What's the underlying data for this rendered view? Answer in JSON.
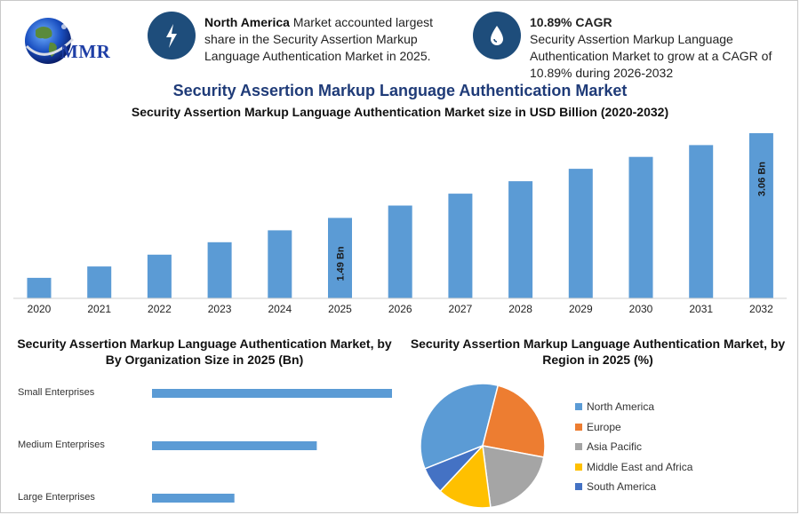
{
  "brand": {
    "logo_text": "MMR"
  },
  "info": [
    {
      "icon": "bolt-icon",
      "bold": "North America",
      "text": " Market accounted largest share in the Security Assertion Markup Language Authentication Market in 2025."
    },
    {
      "icon": "drop-icon",
      "bold": "10.89% CAGR",
      "text": "Security Assertion Markup Language Authentication Market to grow at a CAGR of 10.89% during 2026-2032"
    }
  ],
  "title": "Security Assertion Markup Language Authentication Market",
  "subtitle": "Security Assertion Markup Language Authentication Market size in USD Billion (2020-2032)",
  "org_panel": {
    "title_line1": "Security Assertion Markup Language Authentication Market, by",
    "title_line2": "By Organization Size in 2025 (Bn)"
  },
  "region_panel": {
    "title_line1": "Security Assertion Markup Language Authentication Market, by",
    "title_line2": "Region in 2025 (%)"
  },
  "colors": {
    "bar": "#5b9bd5",
    "north_america": "#5b9bd5",
    "europe": "#ed7d31",
    "asia_pacific": "#a5a5a5",
    "mea": "#ffc000",
    "south_america": "#4472c4",
    "brand_blue": "#1e4d7b"
  },
  "chart_data": [
    {
      "type": "bar",
      "title": "Security Assertion Markup Language Authentication Market size in USD Billion (2020-2032)",
      "categories": [
        "2020",
        "2021",
        "2022",
        "2023",
        "2024",
        "2025",
        "2026",
        "2027",
        "2028",
        "2029",
        "2030",
        "2031",
        "2032"
      ],
      "values": [
        0.38,
        0.59,
        0.81,
        1.04,
        1.26,
        1.49,
        1.72,
        1.94,
        2.17,
        2.4,
        2.62,
        2.84,
        3.06
      ],
      "data_labels": {
        "2025": "1.49 Bn",
        "2032": "3.06 Bn"
      },
      "ylim": [
        0,
        3.06
      ],
      "xlabel": "",
      "ylabel": "",
      "grid": false
    },
    {
      "type": "bar",
      "orientation": "horizontal",
      "title": "Security Assertion Markup Language Authentication Market, by By Organization Size in 2025 (Bn)",
      "categories": [
        "Small Enterprises",
        "Medium Enterprises",
        "Large Enterprises"
      ],
      "values": [
        0.67,
        0.46,
        0.23
      ],
      "xlim": [
        0,
        0.67
      ]
    },
    {
      "type": "pie",
      "title": "Security Assertion Markup Language Authentication Market, by Region in 2025 (%)",
      "categories": [
        "North America",
        "Europe",
        "Asia Pacific",
        "Middle East and Africa",
        "South America"
      ],
      "values": [
        35,
        24,
        20,
        14,
        7
      ],
      "legend_position": "right"
    }
  ]
}
